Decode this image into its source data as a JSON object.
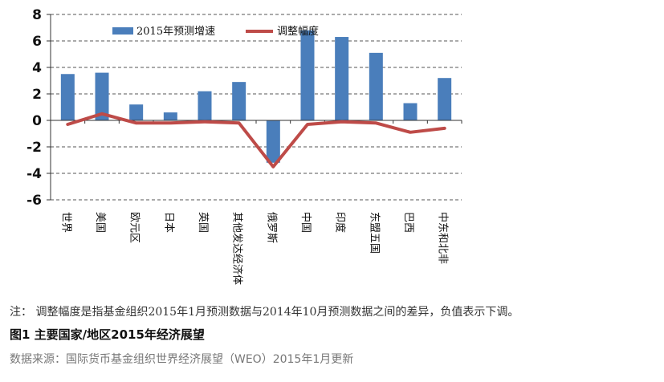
{
  "chart_data": {
    "type": "bar",
    "categories": [
      "世界",
      "美国",
      "欧元区",
      "日本",
      "英国",
      "其他发达经济体",
      "俄罗斯",
      "中国",
      "印度",
      "东盟五国",
      "巴西",
      "中东和北非"
    ],
    "series": [
      {
        "name": "2015年预测增速",
        "type": "bar",
        "color": "#4a7ebb",
        "values": [
          3.5,
          3.6,
          1.2,
          0.6,
          2.2,
          2.9,
          -3.2,
          6.8,
          6.3,
          5.1,
          1.3,
          3.2
        ]
      },
      {
        "name": "调整幅度",
        "type": "line",
        "color": "#be4b48",
        "values": [
          -0.3,
          0.5,
          -0.2,
          -0.2,
          -0.1,
          -0.2,
          -3.5,
          -0.3,
          -0.1,
          -0.2,
          -0.9,
          -0.6
        ]
      }
    ],
    "yticks": [
      8,
      6,
      4,
      2,
      0,
      -2,
      -4,
      -6
    ],
    "ylim": [
      -6,
      8
    ],
    "grid": true,
    "legend": "top-center"
  },
  "note": "注： 调整幅度是指基金组织2015年1月预测数据与2014年10月预测数据之间的差异，负值表示下调。",
  "figure_title": "图1 主要国家/地区2015年经济展望",
  "source": "数据来源：国际货币基金组织世界经济展望（WEO）2015年1月更新"
}
